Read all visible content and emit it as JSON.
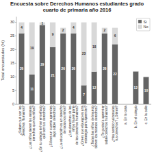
{
  "chart_data": {
    "type": "bar",
    "stacked": true,
    "title": "Encuesta sobre Derechos Humanos estudiantes grado cuarto de primaria año 2016",
    "y_label": "Total encuestados (%)",
    "ylim": [
      0,
      32
    ],
    "yticks": [
      0,
      5,
      10,
      15,
      20,
      25,
      30
    ],
    "categories": [
      "¿Saben qué son los Derechos Humanos?",
      "¿Los niños tienen los mismos derechos que los niñas?",
      "¿En tu colegio te han enseñado qué son tus derechos?",
      "¿Si lees un cuento aprendes algo sobre derechos?",
      "¿La educación es un derecho de todos los niños?",
      "¿Los derechos de los niños hacen parte\nde los derechos humanos?",
      "¿Crees que el juego es una estrategia para aprender?",
      "¿Todos los niños del mundo tienen los mismos derechos?",
      "¿Te gustaría aprender sobre derechos humanos?",
      "¿Has sentido vulnerados tus derechos? ¿Dónde?",
      "a. En la casa",
      "b. En el colegio",
      "c. En la calle"
    ],
    "series": [
      {
        "name": "Si",
        "color": "#646464",
        "values": [
          26,
          11,
          29,
          21,
          26,
          26,
          7,
          12,
          26,
          22,
          0,
          12,
          10
        ]
      },
      {
        "name": "No",
        "color": "#d8d8d8",
        "values": [
          4,
          19,
          1,
          9,
          2,
          4,
          23,
          18,
          2,
          6,
          0,
          0,
          0
        ]
      }
    ],
    "data_labels": true,
    "legend": "upper right"
  }
}
